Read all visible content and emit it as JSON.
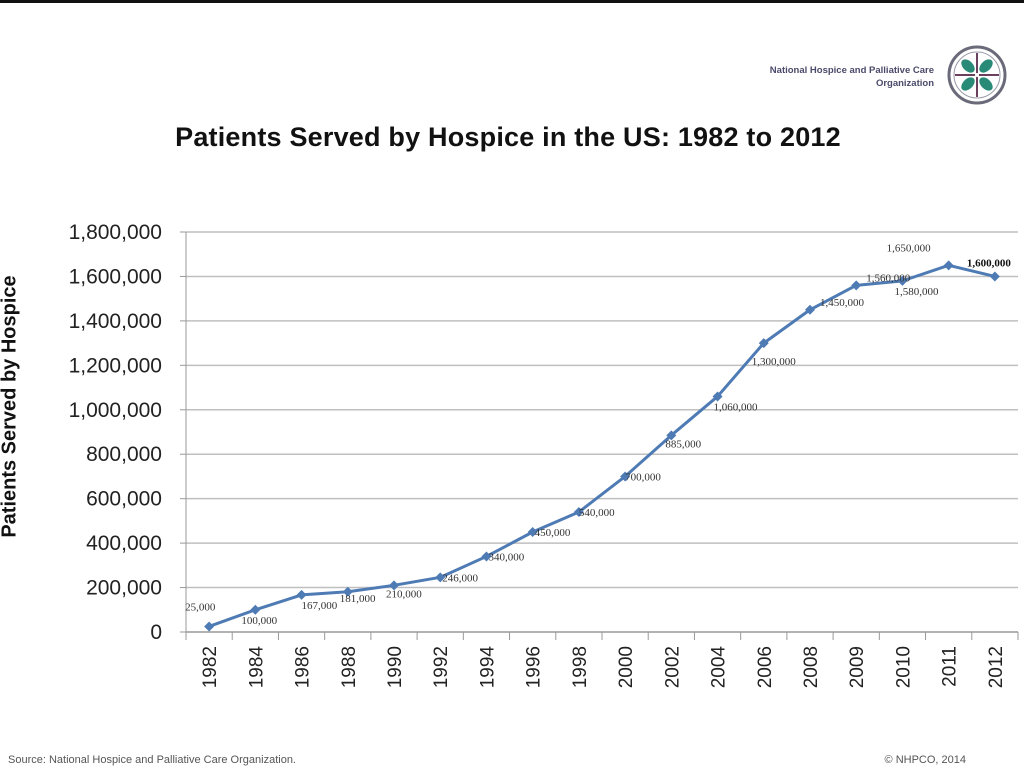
{
  "header": {
    "org_name_line1": "National Hospice and Palliative Care",
    "org_name_line2": "Organization",
    "logo_icon": "nhpco-leaf-logo-icon"
  },
  "footer": {
    "source": "Source: National Hospice and Palliative Care Organization.",
    "copyright": "© NHPCO, 2014"
  },
  "colors": {
    "series": "#4f7bb5",
    "gridline": "#bfbfbf",
    "logo_ring": "#6a6a7a",
    "logo_leaf": "#2a8a78",
    "logo_cross": "#6b3f5e"
  },
  "chart_data": {
    "type": "line",
    "title": "Patients Served by Hospice in the US: 1982 to 2012",
    "xlabel": "",
    "ylabel": "Patients Served by Hospice",
    "categories": [
      "1982",
      "1984",
      "1986",
      "1988",
      "1990",
      "1992",
      "1994",
      "1996",
      "1998",
      "2000",
      "2002",
      "2004",
      "2006",
      "2008",
      "2009",
      "2010",
      "2011",
      "2012"
    ],
    "series": [
      {
        "name": "Patients Served",
        "values": [
          25000,
          100000,
          167000,
          181000,
          210000,
          246000,
          340000,
          450000,
          540000,
          700000,
          885000,
          1060000,
          1300000,
          1450000,
          1560000,
          1580000,
          1650000,
          1600000
        ],
        "labels": [
          "25,000",
          "100,000",
          "167,000",
          "181,000",
          "210,000",
          "246,000",
          "340,000",
          "450,000",
          "540,000",
          "700,000",
          "885,000",
          "1,060,000",
          "1,300,000",
          "1,450,000",
          "1,560,000",
          "1,580,000",
          "1,650,000",
          "1,600,000"
        ]
      }
    ],
    "ylim": [
      0,
      1800000
    ],
    "yticks": [
      0,
      200000,
      400000,
      600000,
      800000,
      1000000,
      1200000,
      1400000,
      1600000,
      1800000
    ],
    "ytick_labels": [
      "0",
      "200,000",
      "400,000",
      "600,000",
      "800,000",
      "1,000,000",
      "1,200,000",
      "1,400,000",
      "1,600,000",
      "1,800,000"
    ],
    "grid": true,
    "legend": "none",
    "marker": "diamond"
  }
}
